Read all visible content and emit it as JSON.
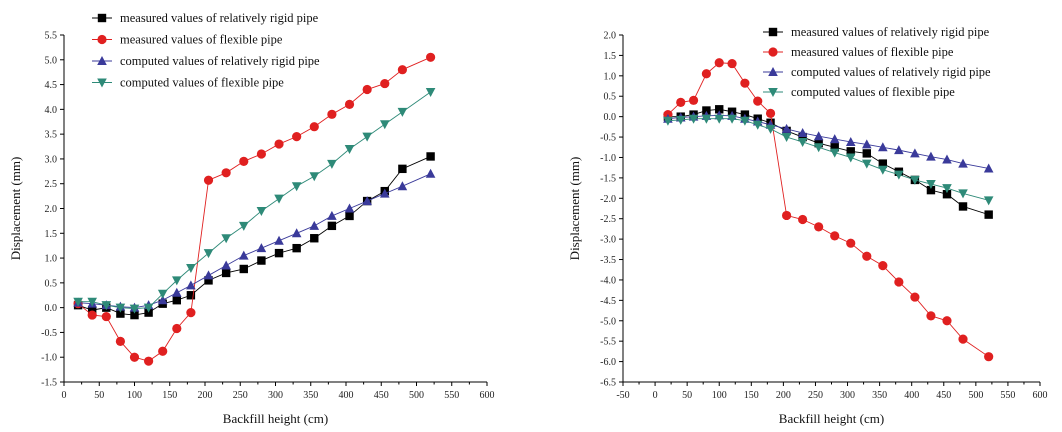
{
  "chart_data": [
    {
      "type": "line",
      "title": "",
      "xlabel": "Backfill height (cm)",
      "ylabel": "Displacement (mm)",
      "xlim": [
        0,
        600
      ],
      "ylim": [
        -1.5,
        5.5
      ],
      "xticks": [
        0,
        50,
        100,
        150,
        200,
        250,
        300,
        350,
        400,
        450,
        500,
        550,
        600
      ],
      "yticks": [
        -1.5,
        -1.0,
        -0.5,
        0.0,
        0.5,
        1.0,
        1.5,
        2.0,
        2.5,
        3.0,
        3.5,
        4.0,
        4.5,
        5.0,
        5.5
      ],
      "xtick_labels": [
        "0",
        "50",
        "100",
        "150",
        "200",
        "250",
        "300",
        "350",
        "400",
        "450",
        "500",
        "550",
        "600"
      ],
      "ytick_labels": [
        "-1.5",
        "-1.0",
        "-0.5",
        "0.0",
        "0.5",
        "1.0",
        "1.5",
        "2.0",
        "2.5",
        "3.0",
        "3.5",
        "4.0",
        "4.5",
        "5.0",
        "5.5"
      ],
      "grid": false,
      "legend_position": "top-left",
      "series": [
        {
          "name": "measured values of relatively rigid pipe",
          "color": "#000000",
          "marker": "square",
          "x": [
            20,
            40,
            60,
            80,
            100,
            120,
            140,
            160,
            180,
            205,
            230,
            255,
            280,
            305,
            330,
            355,
            380,
            405,
            430,
            455,
            480,
            520
          ],
          "y": [
            0.05,
            -0.05,
            0.0,
            -0.12,
            -0.15,
            -0.1,
            0.08,
            0.15,
            0.25,
            0.55,
            0.7,
            0.78,
            0.95,
            1.1,
            1.2,
            1.4,
            1.65,
            1.85,
            2.15,
            2.35,
            2.8,
            3.05
          ]
        },
        {
          "name": "measured values of flexible pipe",
          "color": "#e02020",
          "marker": "circle",
          "x": [
            20,
            40,
            60,
            80,
            100,
            120,
            140,
            160,
            180,
            205,
            230,
            255,
            280,
            305,
            330,
            355,
            380,
            405,
            430,
            455,
            480,
            520
          ],
          "y": [
            0.08,
            -0.15,
            -0.18,
            -0.68,
            -1.0,
            -1.08,
            -0.88,
            -0.42,
            -0.1,
            2.57,
            2.72,
            2.95,
            3.1,
            3.3,
            3.45,
            3.65,
            3.9,
            4.1,
            4.4,
            4.52,
            4.8,
            5.05
          ]
        },
        {
          "name": "computed values of relatively rigid pipe",
          "color": "#3a3a9a",
          "marker": "triangle-up",
          "x": [
            20,
            40,
            60,
            80,
            100,
            120,
            140,
            160,
            180,
            205,
            230,
            255,
            280,
            305,
            330,
            355,
            380,
            405,
            430,
            455,
            480,
            520
          ],
          "y": [
            0.1,
            0.08,
            0.05,
            0.02,
            0.0,
            0.05,
            0.15,
            0.3,
            0.45,
            0.65,
            0.85,
            1.05,
            1.2,
            1.35,
            1.5,
            1.65,
            1.85,
            2.0,
            2.15,
            2.3,
            2.45,
            2.7
          ]
        },
        {
          "name": "computed values of flexible pipe",
          "color": "#2e8a78",
          "marker": "triangle-down",
          "x": [
            20,
            40,
            60,
            80,
            100,
            120,
            140,
            160,
            180,
            205,
            230,
            255,
            280,
            305,
            330,
            355,
            380,
            405,
            430,
            455,
            480,
            520
          ],
          "y": [
            0.12,
            0.12,
            0.05,
            0.0,
            -0.02,
            0.0,
            0.28,
            0.55,
            0.8,
            1.1,
            1.4,
            1.65,
            1.95,
            2.2,
            2.45,
            2.65,
            2.9,
            3.2,
            3.45,
            3.7,
            3.95,
            4.35
          ]
        }
      ]
    },
    {
      "type": "line",
      "title": "",
      "xlabel": "Backfill height (cm)",
      "ylabel": "Displacement (mm)",
      "xlim": [
        -50,
        600
      ],
      "ylim": [
        -6.5,
        2.0
      ],
      "xticks": [
        -50,
        0,
        50,
        100,
        150,
        200,
        250,
        300,
        350,
        400,
        450,
        500,
        550,
        600
      ],
      "yticks": [
        -6.5,
        -6.0,
        -5.5,
        -5.0,
        -4.5,
        -4.0,
        -3.5,
        -3.0,
        -2.5,
        -2.0,
        -1.5,
        -1.0,
        -0.5,
        0.0,
        0.5,
        1.0,
        1.5,
        2.0
      ],
      "xtick_labels": [
        "-50",
        "0",
        "50",
        "100",
        "150",
        "200",
        "250",
        "300",
        "350",
        "400",
        "450",
        "500",
        "550",
        "600"
      ],
      "ytick_labels": [
        "-6.5",
        "-6.0",
        "-5.5",
        "-5.0",
        "-4.5",
        "-4.0",
        "-3.5",
        "-3.0",
        "-2.5",
        "-2.0",
        "-1.5",
        "-1.0",
        "-0.5",
        "0.0",
        "0.5",
        "1.0",
        "1.5",
        "2.0"
      ],
      "grid": false,
      "legend_position": "top-right",
      "series": [
        {
          "name": "measured values of relatively rigid pipe",
          "color": "#000000",
          "marker": "square",
          "x": [
            20,
            40,
            60,
            80,
            100,
            120,
            140,
            160,
            180,
            205,
            230,
            255,
            280,
            305,
            330,
            355,
            380,
            405,
            430,
            455,
            480,
            520
          ],
          "y": [
            0.0,
            0.0,
            0.05,
            0.15,
            0.18,
            0.12,
            0.05,
            -0.05,
            -0.15,
            -0.35,
            -0.5,
            -0.65,
            -0.75,
            -0.85,
            -0.9,
            -1.15,
            -1.35,
            -1.55,
            -1.8,
            -1.9,
            -2.2,
            -2.4
          ]
        },
        {
          "name": "measured values of flexible pipe",
          "color": "#e02020",
          "marker": "circle",
          "x": [
            20,
            40,
            60,
            80,
            100,
            120,
            140,
            160,
            180,
            205,
            230,
            255,
            280,
            305,
            330,
            355,
            380,
            405,
            430,
            455,
            480,
            520
          ],
          "y": [
            0.05,
            0.35,
            0.4,
            1.05,
            1.32,
            1.3,
            0.82,
            0.38,
            0.08,
            -2.42,
            -2.52,
            -2.7,
            -2.92,
            -3.1,
            -3.42,
            -3.65,
            -4.05,
            -4.42,
            -4.88,
            -5.0,
            -5.45,
            -5.88
          ]
        },
        {
          "name": "computed values of relatively rigid pipe",
          "color": "#3a3a9a",
          "marker": "triangle-up",
          "x": [
            20,
            40,
            60,
            80,
            100,
            120,
            140,
            160,
            180,
            205,
            230,
            255,
            280,
            305,
            330,
            355,
            380,
            405,
            430,
            455,
            480,
            520
          ],
          "y": [
            -0.05,
            -0.02,
            0.0,
            0.02,
            0.03,
            0.02,
            -0.05,
            -0.12,
            -0.2,
            -0.3,
            -0.4,
            -0.48,
            -0.55,
            -0.62,
            -0.68,
            -0.75,
            -0.82,
            -0.9,
            -0.98,
            -1.05,
            -1.15,
            -1.27
          ]
        },
        {
          "name": "computed values of flexible pipe",
          "color": "#2e8a78",
          "marker": "triangle-down",
          "x": [
            20,
            40,
            60,
            80,
            100,
            120,
            140,
            160,
            180,
            205,
            230,
            255,
            280,
            305,
            330,
            355,
            380,
            405,
            430,
            455,
            480,
            520
          ],
          "y": [
            -0.1,
            -0.08,
            -0.05,
            -0.05,
            -0.05,
            -0.05,
            -0.1,
            -0.2,
            -0.3,
            -0.5,
            -0.62,
            -0.75,
            -0.88,
            -1.0,
            -1.15,
            -1.3,
            -1.42,
            -1.55,
            -1.65,
            -1.75,
            -1.88,
            -2.05
          ]
        }
      ]
    }
  ]
}
